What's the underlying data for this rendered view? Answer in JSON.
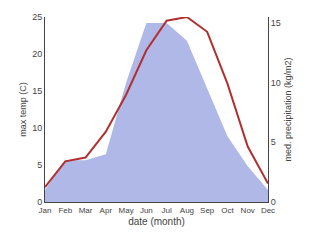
{
  "chart_data": {
    "type": "line",
    "categories": [
      "Jan",
      "Feb",
      "Mar",
      "Apr",
      "May",
      "Jun",
      "Jul",
      "Aug",
      "Sep",
      "Oct",
      "Nov",
      "Dec"
    ],
    "xlabel": "date (month)",
    "ylabel": "max temp (C)",
    "y2label": "med. precipitation (kg/m2)",
    "series": [
      {
        "type": "area",
        "axis": "y2",
        "color": "#b0b8e8",
        "values": [
          1.0,
          3.5,
          3.5,
          4.0,
          10.0,
          15.0,
          15.0,
          13.5,
          9.5,
          5.5,
          3.0,
          1.0
        ]
      },
      {
        "type": "line",
        "color": "#b03030",
        "values": [
          2,
          5.5,
          6.0,
          9.5,
          14.5,
          20.5,
          24.5,
          25.0,
          23.0,
          16.0,
          7.5,
          2.5
        ]
      }
    ],
    "ylim": [
      0,
      25
    ],
    "yticks": [
      0,
      5,
      10,
      15,
      20,
      25
    ],
    "y2lim": [
      0,
      15.5
    ],
    "y2ticks": [
      0,
      5,
      10,
      15
    ],
    "grid": false
  }
}
